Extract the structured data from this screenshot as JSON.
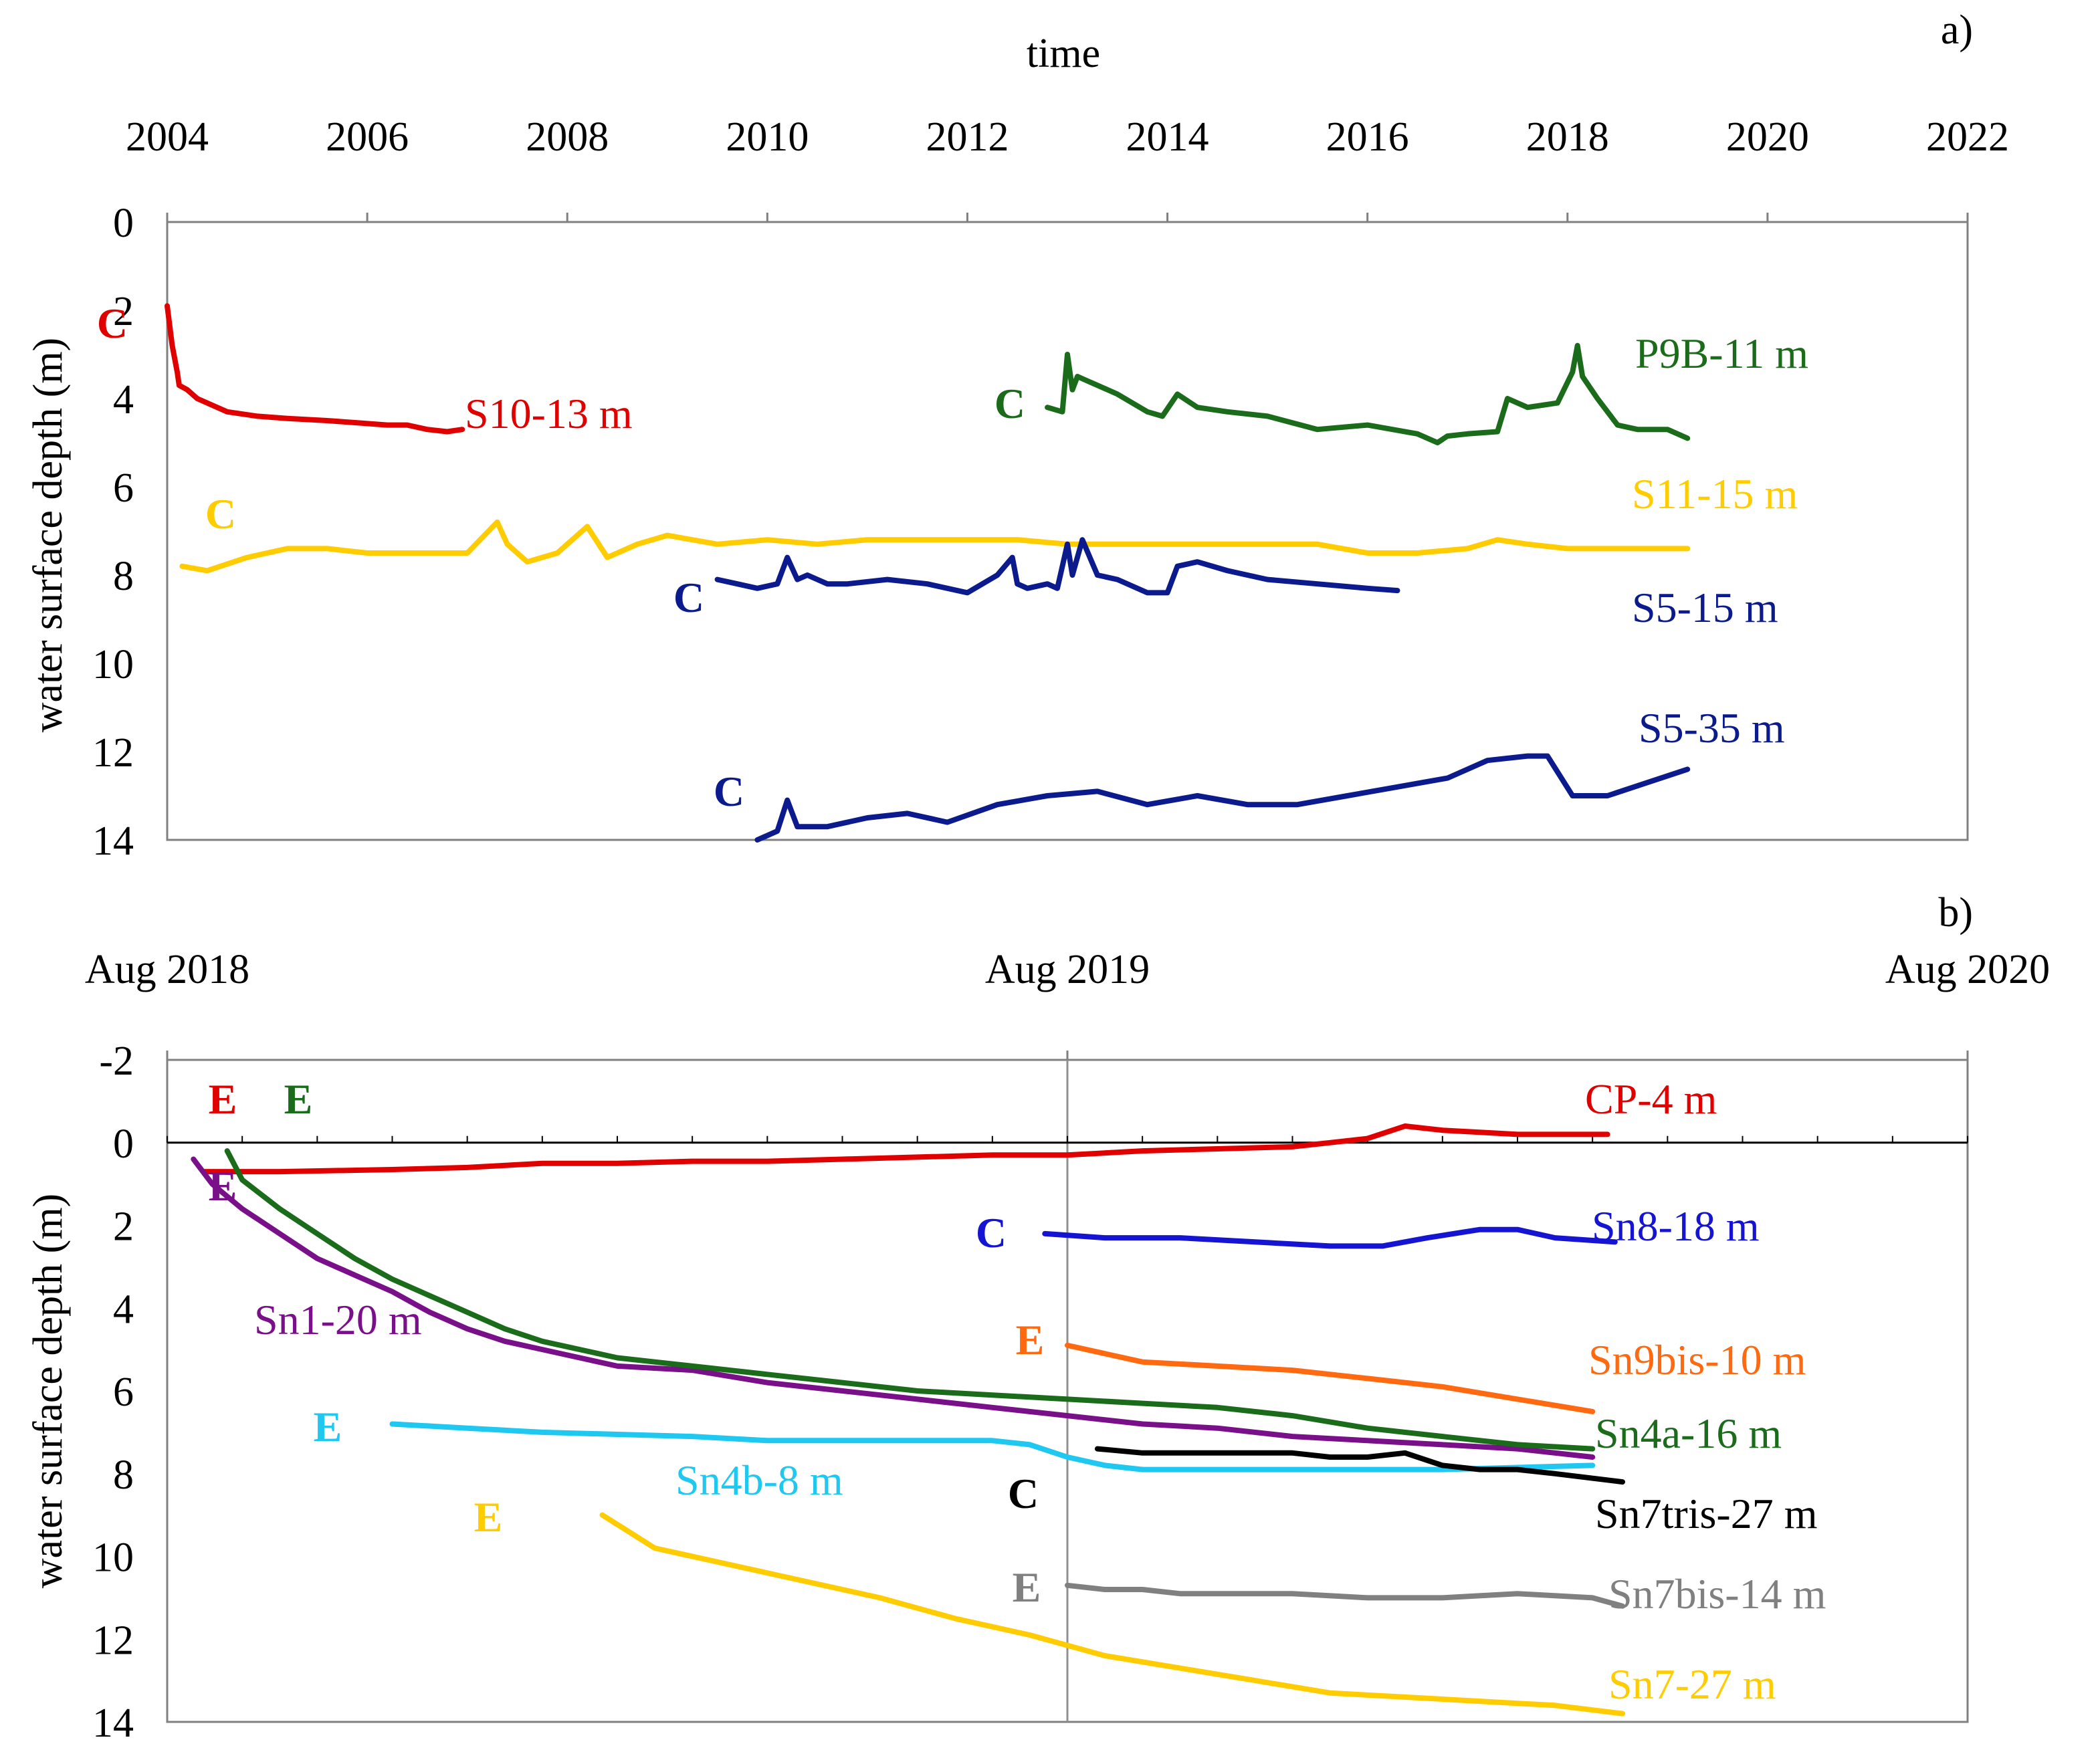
{
  "chart_data": [
    {
      "panel": "a)",
      "type": "line",
      "xlabel": "time",
      "ylabel": "water surface depth (m)",
      "xlim": [
        2004,
        2022
      ],
      "ylim": [
        0,
        14
      ],
      "y_inverted": true,
      "x_axis_position": "top",
      "x_ticks": [
        2004,
        2006,
        2008,
        2010,
        2012,
        2014,
        2016,
        2018,
        2020,
        2022
      ],
      "y_ticks": [
        0,
        2,
        4,
        6,
        8,
        10,
        12,
        14
      ],
      "series": [
        {
          "name": "S10-13 m",
          "color": "#e00000",
          "marker": "C",
          "x": [
            2004.0,
            2004.05,
            2004.1,
            2004.12,
            2004.2,
            2004.3,
            2004.4,
            2004.6,
            2004.9,
            2005.2,
            2005.6,
            2005.9,
            2006.2,
            2006.4,
            2006.6,
            2006.8,
            2006.95
          ],
          "y": [
            1.9,
            2.8,
            3.4,
            3.7,
            3.8,
            4.0,
            4.1,
            4.3,
            4.4,
            4.45,
            4.5,
            4.55,
            4.6,
            4.6,
            4.7,
            4.75,
            4.7
          ]
        },
        {
          "name": "P9B-11 m",
          "color": "#1a6b1a",
          "marker": "C",
          "x": [
            2012.8,
            2012.95,
            2013.0,
            2013.05,
            2013.1,
            2013.2,
            2013.3,
            2013.5,
            2013.8,
            2013.95,
            2014.1,
            2014.3,
            2014.6,
            2015.0,
            2015.5,
            2016.0,
            2016.5,
            2016.7,
            2016.8,
            2017.0,
            2017.3,
            2017.4,
            2017.6,
            2017.9,
            2018.05,
            2018.1,
            2018.15,
            2018.3,
            2018.5,
            2018.7,
            2019.0,
            2019.2
          ],
          "y": [
            4.2,
            4.3,
            3.0,
            3.8,
            3.5,
            3.6,
            3.7,
            3.9,
            4.3,
            4.4,
            3.9,
            4.2,
            4.3,
            4.4,
            4.7,
            4.6,
            4.8,
            5.0,
            4.85,
            4.8,
            4.75,
            4.0,
            4.2,
            4.1,
            3.4,
            2.8,
            3.5,
            4.0,
            4.6,
            4.7,
            4.7,
            4.9
          ]
        },
        {
          "name": "S11-15 m",
          "color": "#ffcc00",
          "marker": "C",
          "x": [
            2004.15,
            2004.4,
            2004.8,
            2005.2,
            2005.6,
            2006.0,
            2006.5,
            2007.0,
            2007.3,
            2007.4,
            2007.6,
            2007.9,
            2008.2,
            2008.4,
            2008.7,
            2009.0,
            2009.5,
            2010.0,
            2010.5,
            2011.0,
            2011.5,
            2012.0,
            2012.5,
            2013.0,
            2013.5,
            2014.0,
            2014.5,
            2015.0,
            2015.5,
            2016.0,
            2016.5,
            2017.0,
            2017.3,
            2017.6,
            2018.0,
            2018.5,
            2019.0,
            2019.2
          ],
          "y": [
            7.8,
            7.9,
            7.6,
            7.4,
            7.4,
            7.5,
            7.5,
            7.5,
            6.8,
            7.3,
            7.7,
            7.5,
            6.9,
            7.6,
            7.3,
            7.1,
            7.3,
            7.2,
            7.3,
            7.2,
            7.2,
            7.2,
            7.2,
            7.3,
            7.3,
            7.3,
            7.3,
            7.3,
            7.3,
            7.5,
            7.5,
            7.4,
            7.2,
            7.3,
            7.4,
            7.4,
            7.4,
            7.4
          ]
        },
        {
          "name": "S5-15 m",
          "color": "#0b1a8c",
          "marker": "C",
          "x": [
            2009.5,
            2009.7,
            2009.9,
            2010.1,
            2010.2,
            2010.3,
            2010.4,
            2010.6,
            2010.8,
            2011.2,
            2011.6,
            2012.0,
            2012.3,
            2012.45,
            2012.5,
            2012.6,
            2012.8,
            2012.9,
            2013.0,
            2013.05,
            2013.15,
            2013.3,
            2013.5,
            2013.8,
            2014.0,
            2014.1,
            2014.3,
            2014.6,
            2015.0,
            2015.5,
            2016.0,
            2016.3
          ],
          "y": [
            8.1,
            8.2,
            8.3,
            8.2,
            7.6,
            8.1,
            8.0,
            8.2,
            8.2,
            8.1,
            8.2,
            8.4,
            8.0,
            7.6,
            8.2,
            8.3,
            8.2,
            8.3,
            7.3,
            8.0,
            7.2,
            8.0,
            8.1,
            8.4,
            8.4,
            7.8,
            7.7,
            7.9,
            8.1,
            8.2,
            8.3,
            8.35
          ]
        },
        {
          "name": "S5-35 m",
          "color": "#0b1a8c",
          "marker": "C",
          "x": [
            2009.9,
            2010.1,
            2010.2,
            2010.3,
            2010.6,
            2011.0,
            2011.4,
            2011.8,
            2012.3,
            2012.8,
            2013.3,
            2013.8,
            2014.3,
            2014.8,
            2015.3,
            2015.8,
            2016.3,
            2016.8,
            2017.2,
            2017.6,
            2017.8,
            2018.05,
            2018.4,
            2018.8,
            2019.2
          ],
          "y": [
            14.0,
            13.8,
            13.1,
            13.7,
            13.7,
            13.5,
            13.4,
            13.6,
            13.2,
            13.0,
            12.9,
            13.2,
            13.0,
            13.2,
            13.2,
            13.0,
            12.8,
            12.6,
            12.2,
            12.1,
            12.1,
            13.0,
            13.0,
            12.7,
            12.4
          ]
        }
      ]
    },
    {
      "panel": "b)",
      "type": "line",
      "xlabel": "",
      "ylabel": "water surface depth (m)",
      "x_ticks": [
        "Aug 2018",
        "Aug 2019",
        "Aug 2020"
      ],
      "xlim_months": [
        0,
        24
      ],
      "ylim": [
        -2,
        14
      ],
      "y_inverted": true,
      "x_axis_position": "top",
      "y_ticks": [
        -2,
        0,
        2,
        4,
        6,
        8,
        10,
        12,
        14
      ],
      "series": [
        {
          "name": "CP-4 m",
          "color": "#e00000",
          "marker": "E",
          "x": [
            0.5,
            1.5,
            3,
            4,
            5,
            6,
            7,
            8,
            9,
            10,
            11,
            12,
            13,
            14,
            15,
            15.5,
            16,
            16.5,
            17,
            17.5,
            18,
            18.5,
            19.2
          ],
          "y": [
            0.7,
            0.7,
            0.65,
            0.6,
            0.5,
            0.5,
            0.45,
            0.45,
            0.4,
            0.35,
            0.3,
            0.3,
            0.2,
            0.15,
            0.1,
            0.0,
            -0.1,
            -0.4,
            -0.3,
            -0.25,
            -0.2,
            -0.2,
            -0.2
          ]
        },
        {
          "name": "Sn1-20 m",
          "color": "#7a0f8a",
          "marker": "E",
          "x": [
            0.35,
            0.6,
            1.0,
            1.5,
            2.0,
            2.5,
            3.0,
            3.5,
            4.0,
            4.5,
            5.0,
            5.5,
            6.0,
            7.0,
            8.0,
            9.0,
            10.0,
            11.0,
            12.0,
            13.0,
            14.0,
            15.0,
            16.0,
            17.0,
            18.0,
            19.0
          ],
          "y": [
            0.4,
            1.0,
            1.6,
            2.2,
            2.8,
            3.2,
            3.6,
            4.1,
            4.5,
            4.8,
            5.0,
            5.2,
            5.4,
            5.5,
            5.8,
            6.0,
            6.2,
            6.4,
            6.6,
            6.8,
            6.9,
            7.1,
            7.2,
            7.3,
            7.4,
            7.6
          ]
        },
        {
          "name": "Sn4a-16 m",
          "color": "#1a6b1a",
          "marker": "E",
          "x": [
            0.8,
            1.0,
            1.5,
            2.0,
            2.5,
            3.0,
            3.5,
            4.0,
            4.5,
            5.0,
            5.5,
            6.0,
            7.0,
            8.0,
            9.0,
            10.0,
            11.0,
            12.0,
            13.0,
            14.0,
            15.0,
            16.0,
            17.0,
            18.0,
            19.0
          ],
          "y": [
            0.2,
            0.9,
            1.6,
            2.2,
            2.8,
            3.3,
            3.7,
            4.1,
            4.5,
            4.8,
            5.0,
            5.2,
            5.4,
            5.6,
            5.8,
            6.0,
            6.1,
            6.2,
            6.3,
            6.4,
            6.6,
            6.9,
            7.1,
            7.3,
            7.4
          ]
        },
        {
          "name": "Sn8-18 m",
          "color": "#1414d2",
          "marker": "C",
          "x": [
            11.7,
            12.5,
            13.5,
            14.5,
            15.5,
            16.2,
            16.8,
            17.5,
            18.0,
            18.5,
            19.3
          ],
          "y": [
            2.2,
            2.3,
            2.3,
            2.4,
            2.5,
            2.5,
            2.3,
            2.1,
            2.1,
            2.3,
            2.4
          ]
        },
        {
          "name": "Sn9bis-10 m",
          "color": "#ff6a10",
          "marker": "E",
          "x": [
            12.0,
            13.0,
            14.0,
            15.0,
            16.0,
            17.0,
            18.0,
            19.0
          ],
          "y": [
            4.9,
            5.3,
            5.4,
            5.5,
            5.7,
            5.9,
            6.2,
            6.5
          ]
        },
        {
          "name": "Sn4b-8 m",
          "color": "#1ec8f0",
          "marker": "E",
          "x": [
            3.0,
            4.0,
            5.0,
            6.0,
            7.0,
            8.0,
            9.0,
            10.0,
            11.0,
            11.5,
            12.0,
            12.5,
            13.0,
            14.0,
            15.0,
            16.0,
            17.0,
            18.0,
            19.0
          ],
          "y": [
            6.8,
            6.9,
            7.0,
            7.05,
            7.1,
            7.2,
            7.2,
            7.2,
            7.2,
            7.3,
            7.6,
            7.8,
            7.9,
            7.9,
            7.9,
            7.9,
            7.9,
            7.85,
            7.8
          ]
        },
        {
          "name": "Sn7tris-27 m",
          "color": "#000000",
          "marker": "C",
          "x": [
            12.4,
            13.0,
            14.0,
            15.0,
            15.5,
            16.0,
            16.5,
            17.0,
            17.5,
            18.0,
            18.5,
            19.4
          ],
          "y": [
            7.4,
            7.5,
            7.5,
            7.5,
            7.6,
            7.6,
            7.5,
            7.8,
            7.9,
            7.9,
            8.0,
            8.2
          ]
        },
        {
          "name": "Sn7bis-14 m",
          "color": "#808080",
          "marker": "E",
          "x": [
            12.0,
            12.5,
            13.0,
            13.5,
            14.0,
            15.0,
            16.0,
            17.0,
            18.0,
            19.0,
            19.4
          ],
          "y": [
            10.7,
            10.8,
            10.8,
            10.9,
            10.9,
            10.9,
            11.0,
            11.0,
            10.9,
            11.0,
            11.2
          ]
        },
        {
          "name": "Sn7-27 m",
          "color": "#ffcc00",
          "marker": "E",
          "x": [
            5.8,
            6.5,
            7.5,
            8.5,
            9.5,
            10.5,
            11.5,
            12.5,
            13.5,
            14.5,
            15.5,
            16.5,
            17.5,
            18.5,
            19.4
          ],
          "y": [
            9.0,
            9.8,
            10.2,
            10.6,
            11.0,
            11.5,
            11.9,
            12.4,
            12.7,
            13.0,
            13.3,
            13.4,
            13.5,
            13.6,
            13.8
          ]
        }
      ]
    }
  ]
}
